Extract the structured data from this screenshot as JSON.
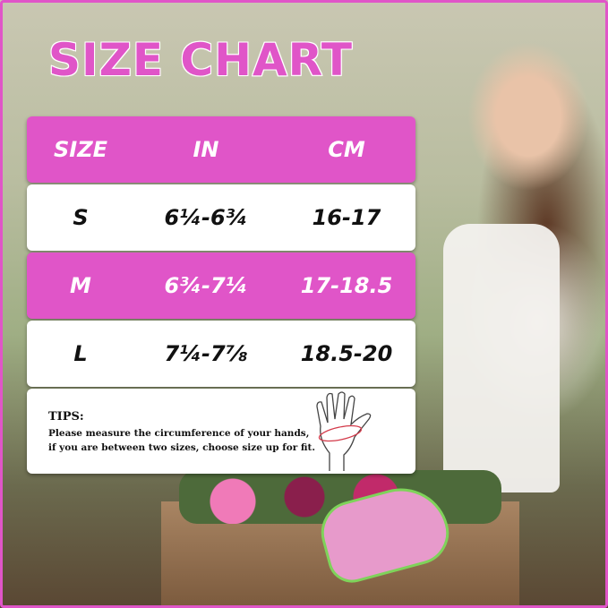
{
  "title": "SIZE CHART",
  "colors": {
    "accent": "#e055c8",
    "row_alt": "#ffffff"
  },
  "table": {
    "headers": [
      "SIZE",
      "IN",
      "CM"
    ],
    "rows": [
      {
        "size": "S",
        "in": "6¼-6¾",
        "cm": "16-17"
      },
      {
        "size": "M",
        "in": "6¾-7¼",
        "cm": "17-18.5"
      },
      {
        "size": "L",
        "in": "7¼-7⅞",
        "cm": "18.5-20"
      }
    ]
  },
  "tips": {
    "heading": "TIPS:",
    "line1": "Please measure the circumference of your hands,",
    "line2": "if you are between two sizes, choose size up for fit.",
    "icon": "hand-measure-icon"
  }
}
